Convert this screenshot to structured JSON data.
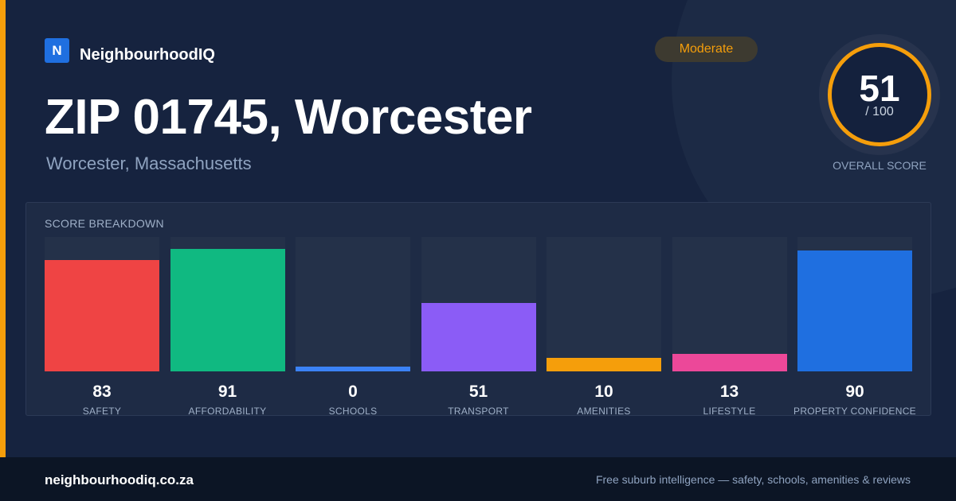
{
  "brand": {
    "logo_letter": "N",
    "name": "NeighbourhoodIQ"
  },
  "badge": {
    "label": "Moderate"
  },
  "header": {
    "title": "ZIP 01745, Worcester",
    "subtitle": "Worcester, Massachusetts"
  },
  "overall": {
    "score": "51",
    "max": "/ 100",
    "label": "OVERALL SCORE"
  },
  "breakdown": {
    "title": "SCORE BREAKDOWN",
    "items": [
      {
        "label": "SAFETY",
        "value": "83",
        "fraction": 0.83,
        "color": "#ef4444"
      },
      {
        "label": "AFFORDABILITY",
        "value": "91",
        "fraction": 0.91,
        "color": "#10b981"
      },
      {
        "label": "SCHOOLS",
        "value": "0",
        "fraction": 0.0,
        "color": "#3b82f6"
      },
      {
        "label": "TRANSPORT",
        "value": "51",
        "fraction": 0.51,
        "color": "#8b5cf6"
      },
      {
        "label": "AMENITIES",
        "value": "10",
        "fraction": 0.1,
        "color": "#f59e0b"
      },
      {
        "label": "LIFESTYLE",
        "value": "13",
        "fraction": 0.13,
        "color": "#ec4899"
      },
      {
        "label": "PROPERTY CONFIDENCE",
        "value": "90",
        "fraction": 0.9,
        "color": "#1f6fe0"
      }
    ]
  },
  "footer": {
    "url": "neighbourhoodiq.co.za",
    "tagline": "Free suburb intelligence — safety, schools, amenities & reviews"
  }
}
